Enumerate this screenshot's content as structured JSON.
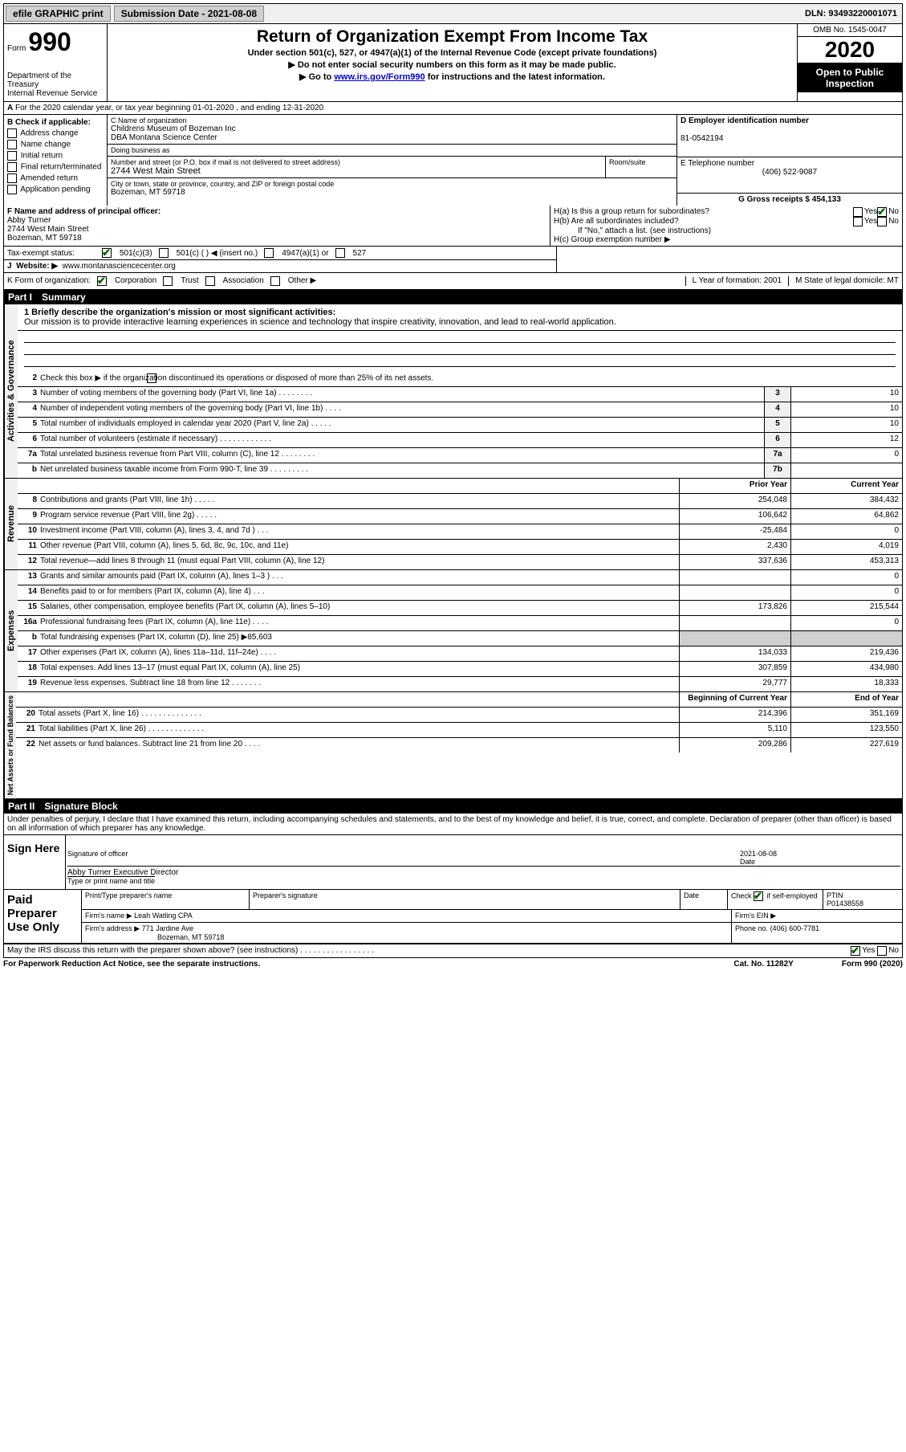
{
  "topbar": {
    "efile": "efile GRAPHIC print",
    "submission": "Submission Date - 2021-08-08",
    "dln": "DLN: 93493220001071"
  },
  "header": {
    "form_label": "Form",
    "form_num": "990",
    "dept": "Department of the Treasury\nInternal Revenue Service",
    "title": "Return of Organization Exempt From Income Tax",
    "sub1": "Under section 501(c), 527, or 4947(a)(1) of the Internal Revenue Code (except private foundations)",
    "sub2": "▶ Do not enter social security numbers on this form as it may be made public.",
    "sub3_pre": "▶ Go to ",
    "sub3_link": "www.irs.gov/Form990",
    "sub3_post": " for instructions and the latest information.",
    "omb": "OMB No. 1545-0047",
    "year": "2020",
    "public": "Open to Public Inspection"
  },
  "row_a": "For the 2020 calendar year, or tax year beginning 01-01-2020    , and ending 12-31-2020",
  "col_b": {
    "header": "B Check if applicable:",
    "items": [
      "Address change",
      "Name change",
      "Initial return",
      "Final return/terminated",
      "Amended return",
      "Application pending"
    ]
  },
  "col_c": {
    "name_label": "C Name of organization",
    "name": "Childrens Museum of Bozeman Inc\nDBA Montana Science Center",
    "dba_label": "Doing business as",
    "street_label": "Number and street (or P.O. box if mail is not delivered to street address)",
    "room_label": "Room/suite",
    "street": "2744 West Main Street",
    "city_label": "City or town, state or province, country, and ZIP or foreign postal code",
    "city": "Bozeman, MT  59718"
  },
  "col_d": {
    "ein_label": "D Employer identification number",
    "ein": "81-0542194",
    "phone_label": "E Telephone number",
    "phone": "(406) 522-9087",
    "gross_label": "G Gross receipts $ 454,133"
  },
  "officer": {
    "label": "F  Name and address of principal officer:",
    "name": "Abby Turner",
    "addr": "2744 West Main Street\nBozeman, MT  59718"
  },
  "h_section": {
    "ha": "H(a)  Is this a group return for subordinates?",
    "hb": "H(b)  Are all subordinates included?",
    "hb_note": "If \"No,\" attach a list. (see instructions)",
    "hc": "H(c)  Group exemption number ▶",
    "yes": "Yes",
    "no": "No"
  },
  "tax_status": {
    "label": "Tax-exempt status:",
    "opts": [
      "501(c)(3)",
      "501(c) (  ) ◀ (insert no.)",
      "4947(a)(1) or",
      "527"
    ]
  },
  "website": {
    "label": "Website: ▶",
    "url": "www.montanasciencecenter.org"
  },
  "k_row": {
    "label": "K Form of organization:",
    "opts": [
      "Corporation",
      "Trust",
      "Association",
      "Other ▶"
    ],
    "l": "L Year of formation: 2001",
    "m": "M State of legal domicile: MT"
  },
  "part1": {
    "num": "Part I",
    "title": "Summary"
  },
  "summary": {
    "mission_label": "1   Briefly describe the organization's mission or most significant activities:",
    "mission": "Our mission is to provide interactive learning experiences in science and technology that inspire creativity, innovation, and lead to real-world application.",
    "line2": "Check this box ▶      if the organization discontinued its operations or disposed of more than 25% of its net assets.",
    "rows_gov": [
      {
        "n": "3",
        "d": "Number of voting members of the governing body (Part VI, line 1a)  .   .   .   .   .   .   .   .",
        "b": "3",
        "v": "10"
      },
      {
        "n": "4",
        "d": "Number of independent voting members of the governing body (Part VI, line 1b)  .   .   .   .",
        "b": "4",
        "v": "10"
      },
      {
        "n": "5",
        "d": "Total number of individuals employed in calendar year 2020 (Part V, line 2a)  .   .   .   .   .",
        "b": "5",
        "v": "10"
      },
      {
        "n": "6",
        "d": "Total number of volunteers (estimate if necessary)   .    .    .    .    .    .    .    .    .    .    .    .",
        "b": "6",
        "v": "12"
      },
      {
        "n": "7a",
        "d": "Total unrelated business revenue from Part VIII, column (C), line 12  .   .   .   .   .   .   .   .",
        "b": "7a",
        "v": "0"
      },
      {
        "n": "b",
        "d": "Net unrelated business taxable income from Form 990-T, line 39   .   .   .   .   .   .   .   .   .",
        "b": "7b",
        "v": ""
      }
    ],
    "prior_header": "Prior Year",
    "current_header": "Current Year",
    "rows_rev": [
      {
        "n": "8",
        "d": "Contributions and grants (Part VIII, line 1h)   .    .    .    .    .",
        "p": "254,048",
        "c": "384,432"
      },
      {
        "n": "9",
        "d": "Program service revenue (Part VIII, line 2g)   .    .    .    .    .",
        "p": "106,642",
        "c": "64,862"
      },
      {
        "n": "10",
        "d": "Investment income (Part VIII, column (A), lines 3, 4, and 7d )   .    .    .",
        "p": "-25,484",
        "c": "0"
      },
      {
        "n": "11",
        "d": "Other revenue (Part VIII, column (A), lines 5, 6d, 8c, 9c, 10c, and 11e)",
        "p": "2,430",
        "c": "4,019"
      },
      {
        "n": "12",
        "d": "Total revenue—add lines 8 through 11 (must equal Part VIII, column (A), line 12)",
        "p": "337,636",
        "c": "453,313"
      }
    ],
    "rows_exp": [
      {
        "n": "13",
        "d": "Grants and similar amounts paid (Part IX, column (A), lines 1–3 )   .    .    .",
        "p": "",
        "c": "0"
      },
      {
        "n": "14",
        "d": "Benefits paid to or for members (Part IX, column (A), line 4)   .    .    .",
        "p": "",
        "c": "0"
      },
      {
        "n": "15",
        "d": "Salaries, other compensation, employee benefits (Part IX, column (A), lines 5–10)",
        "p": "173,826",
        "c": "215,544"
      },
      {
        "n": "16a",
        "d": "Professional fundraising fees (Part IX, column (A), line 11e)   .    .    .    .",
        "p": "",
        "c": "0"
      },
      {
        "n": "b",
        "d": "Total fundraising expenses (Part IX, column (D), line 25) ▶85,603",
        "p": "grey",
        "c": "grey"
      },
      {
        "n": "17",
        "d": "Other expenses (Part IX, column (A), lines 11a–11d, 11f–24e)   .    .    .    .",
        "p": "134,033",
        "c": "219,436"
      },
      {
        "n": "18",
        "d": "Total expenses. Add lines 13–17 (must equal Part IX, column (A), line 25)",
        "p": "307,859",
        "c": "434,980"
      },
      {
        "n": "19",
        "d": "Revenue less expenses. Subtract line 18 from line 12  .   .   .   .   .   .   .",
        "p": "29,777",
        "c": "18,333"
      }
    ],
    "begin_header": "Beginning of Current Year",
    "end_header": "End of Year",
    "rows_net": [
      {
        "n": "20",
        "d": "Total assets (Part X, line 16)  .   .   .   .   .   .   .   .   .   .   .   .   .   .",
        "p": "214,396",
        "c": "351,169"
      },
      {
        "n": "21",
        "d": "Total liabilities (Part X, line 26)  .   .   .   .   .   .   .   .   .   .   .   .   .",
        "p": "5,110",
        "c": "123,550"
      },
      {
        "n": "22",
        "d": "Net assets or fund balances. Subtract line 21 from line 20   .    .    .    .",
        "p": "209,286",
        "c": "227,619"
      }
    ],
    "vert_gov": "Activities & Governance",
    "vert_rev": "Revenue",
    "vert_exp": "Expenses",
    "vert_net": "Net Assets or Fund Balances"
  },
  "part2": {
    "num": "Part II",
    "title": "Signature Block"
  },
  "sig": {
    "penalties": "Under penalties of perjury, I declare that I have examined this return, including accompanying schedules and statements, and to the best of my knowledge and belief, it is true, correct, and complete. Declaration of preparer (other than officer) is based on all information of which preparer has any knowledge.",
    "sign_here": "Sign Here",
    "sig_officer": "Signature of officer",
    "date_label": "Date",
    "date": "2021-08-08",
    "officer_name": "Abby Turner  Executive Director",
    "type_name": "Type or print name and title",
    "paid": "Paid Preparer Use Only",
    "print_name": "Print/Type preparer's name",
    "prep_sig": "Preparer's signature",
    "check_self": "Check       if self-employed",
    "ptin_label": "PTIN",
    "ptin": "P01438558",
    "firm_name_label": "Firm's name    ▶",
    "firm_name": "Leah Watling CPA",
    "firm_ein": "Firm's EIN ▶",
    "firm_addr_label": "Firm's address ▶",
    "firm_addr": "771 Jardine Ave",
    "firm_city": "Bozeman, MT  59718",
    "phone_label": "Phone no.",
    "phone": "(406) 600-7781",
    "discuss": "May the IRS discuss this return with the preparer shown above? (see instructions)   .    .    .    .    .    .    .    .    .    .    .    .    .    .    .    .    ."
  },
  "footer": {
    "paperwork": "For Paperwork Reduction Act Notice, see the separate instructions.",
    "cat": "Cat. No. 11282Y",
    "form": "Form 990 (2020)"
  }
}
